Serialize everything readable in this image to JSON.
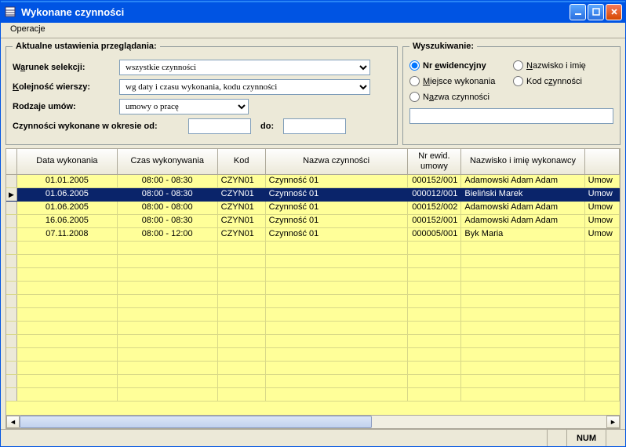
{
  "window": {
    "title": "Wykonane czynności"
  },
  "menu": {
    "operacje": "Operacje"
  },
  "settings": {
    "legend": "Aktualne ustawienia przeglądania:",
    "warunek_label_pre": "W",
    "warunek_label_u": "a",
    "warunek_label_post": "runek selekcji:",
    "warunek_value": "wszystkie czynności",
    "kolejnosc_label_pre": "",
    "kolejnosc_label_u": "K",
    "kolejnosc_label_post": "olejność wierszy:",
    "kolejnosc_value": "wg daty i czasu wykonania, kodu czynności",
    "rodzaje_label": "Rodzaje umów:",
    "rodzaje_value": "umowy o pracę",
    "okres_label": "Czynności wykonane w okresie od:",
    "okres_od": "",
    "okres_do_label": "do:",
    "okres_do": ""
  },
  "search": {
    "legend": "Wyszukiwanie:",
    "opts": [
      {
        "u": "e",
        "pre": "Nr ",
        "post": "widencyjny",
        "checked": true
      },
      {
        "u": "N",
        "pre": "",
        "post": "azwisko i imię",
        "checked": false
      },
      {
        "u": "M",
        "pre": "",
        "post": "iejsce wykonania",
        "checked": false
      },
      {
        "u": "z",
        "pre": "Kod c",
        "post": "ynności",
        "checked": false
      },
      {
        "u": "a",
        "pre": "N",
        "post": "zwa czynności",
        "checked": false
      }
    ],
    "value": ""
  },
  "grid": {
    "headers": [
      "Data wykonania",
      "Czas wykonywania",
      "Kod",
      "Nazwa czynności",
      "Nr ewid. umowy",
      "Nazwisko i imię wykonawcy",
      ""
    ],
    "rows": [
      {
        "date": "01.01.2005",
        "time": "08:00 - 08:30",
        "kod": "CZYN01",
        "nazwa": "Czynność 01",
        "nr": "000152/001",
        "wyk": "Adamowski Adam Adam",
        "ext": "Umow",
        "sel": false
      },
      {
        "date": "01.06.2005",
        "time": "08:00 - 08:30",
        "kod": "CZYN01",
        "nazwa": "Czynność 01",
        "nr": "000012/001",
        "wyk": "Bieliński Marek",
        "ext": "Umow",
        "sel": true
      },
      {
        "date": "01.06.2005",
        "time": "08:00 - 08:00",
        "kod": "CZYN01",
        "nazwa": "Czynność 01",
        "nr": "000152/002",
        "wyk": "Adamowski Adam Adam",
        "ext": "Umow",
        "sel": false
      },
      {
        "date": "16.06.2005",
        "time": "08:00 - 08:30",
        "kod": "CZYN01",
        "nazwa": "Czynność 01",
        "nr": "000152/001",
        "wyk": "Adamowski Adam Adam",
        "ext": "Umow",
        "sel": false
      },
      {
        "date": "07.11.2008",
        "time": "08:00 - 12:00",
        "kod": "CZYN01",
        "nazwa": "Czynność 01",
        "nr": "000005/001",
        "wyk": "Byk Maria",
        "ext": "Umow",
        "sel": false
      }
    ],
    "empty_rows": 12
  },
  "status": {
    "num": "NUM"
  },
  "colors": {
    "titlebar": "#0054e3",
    "row_bg": "#ffff99",
    "sel_bg": "#0a246a"
  }
}
